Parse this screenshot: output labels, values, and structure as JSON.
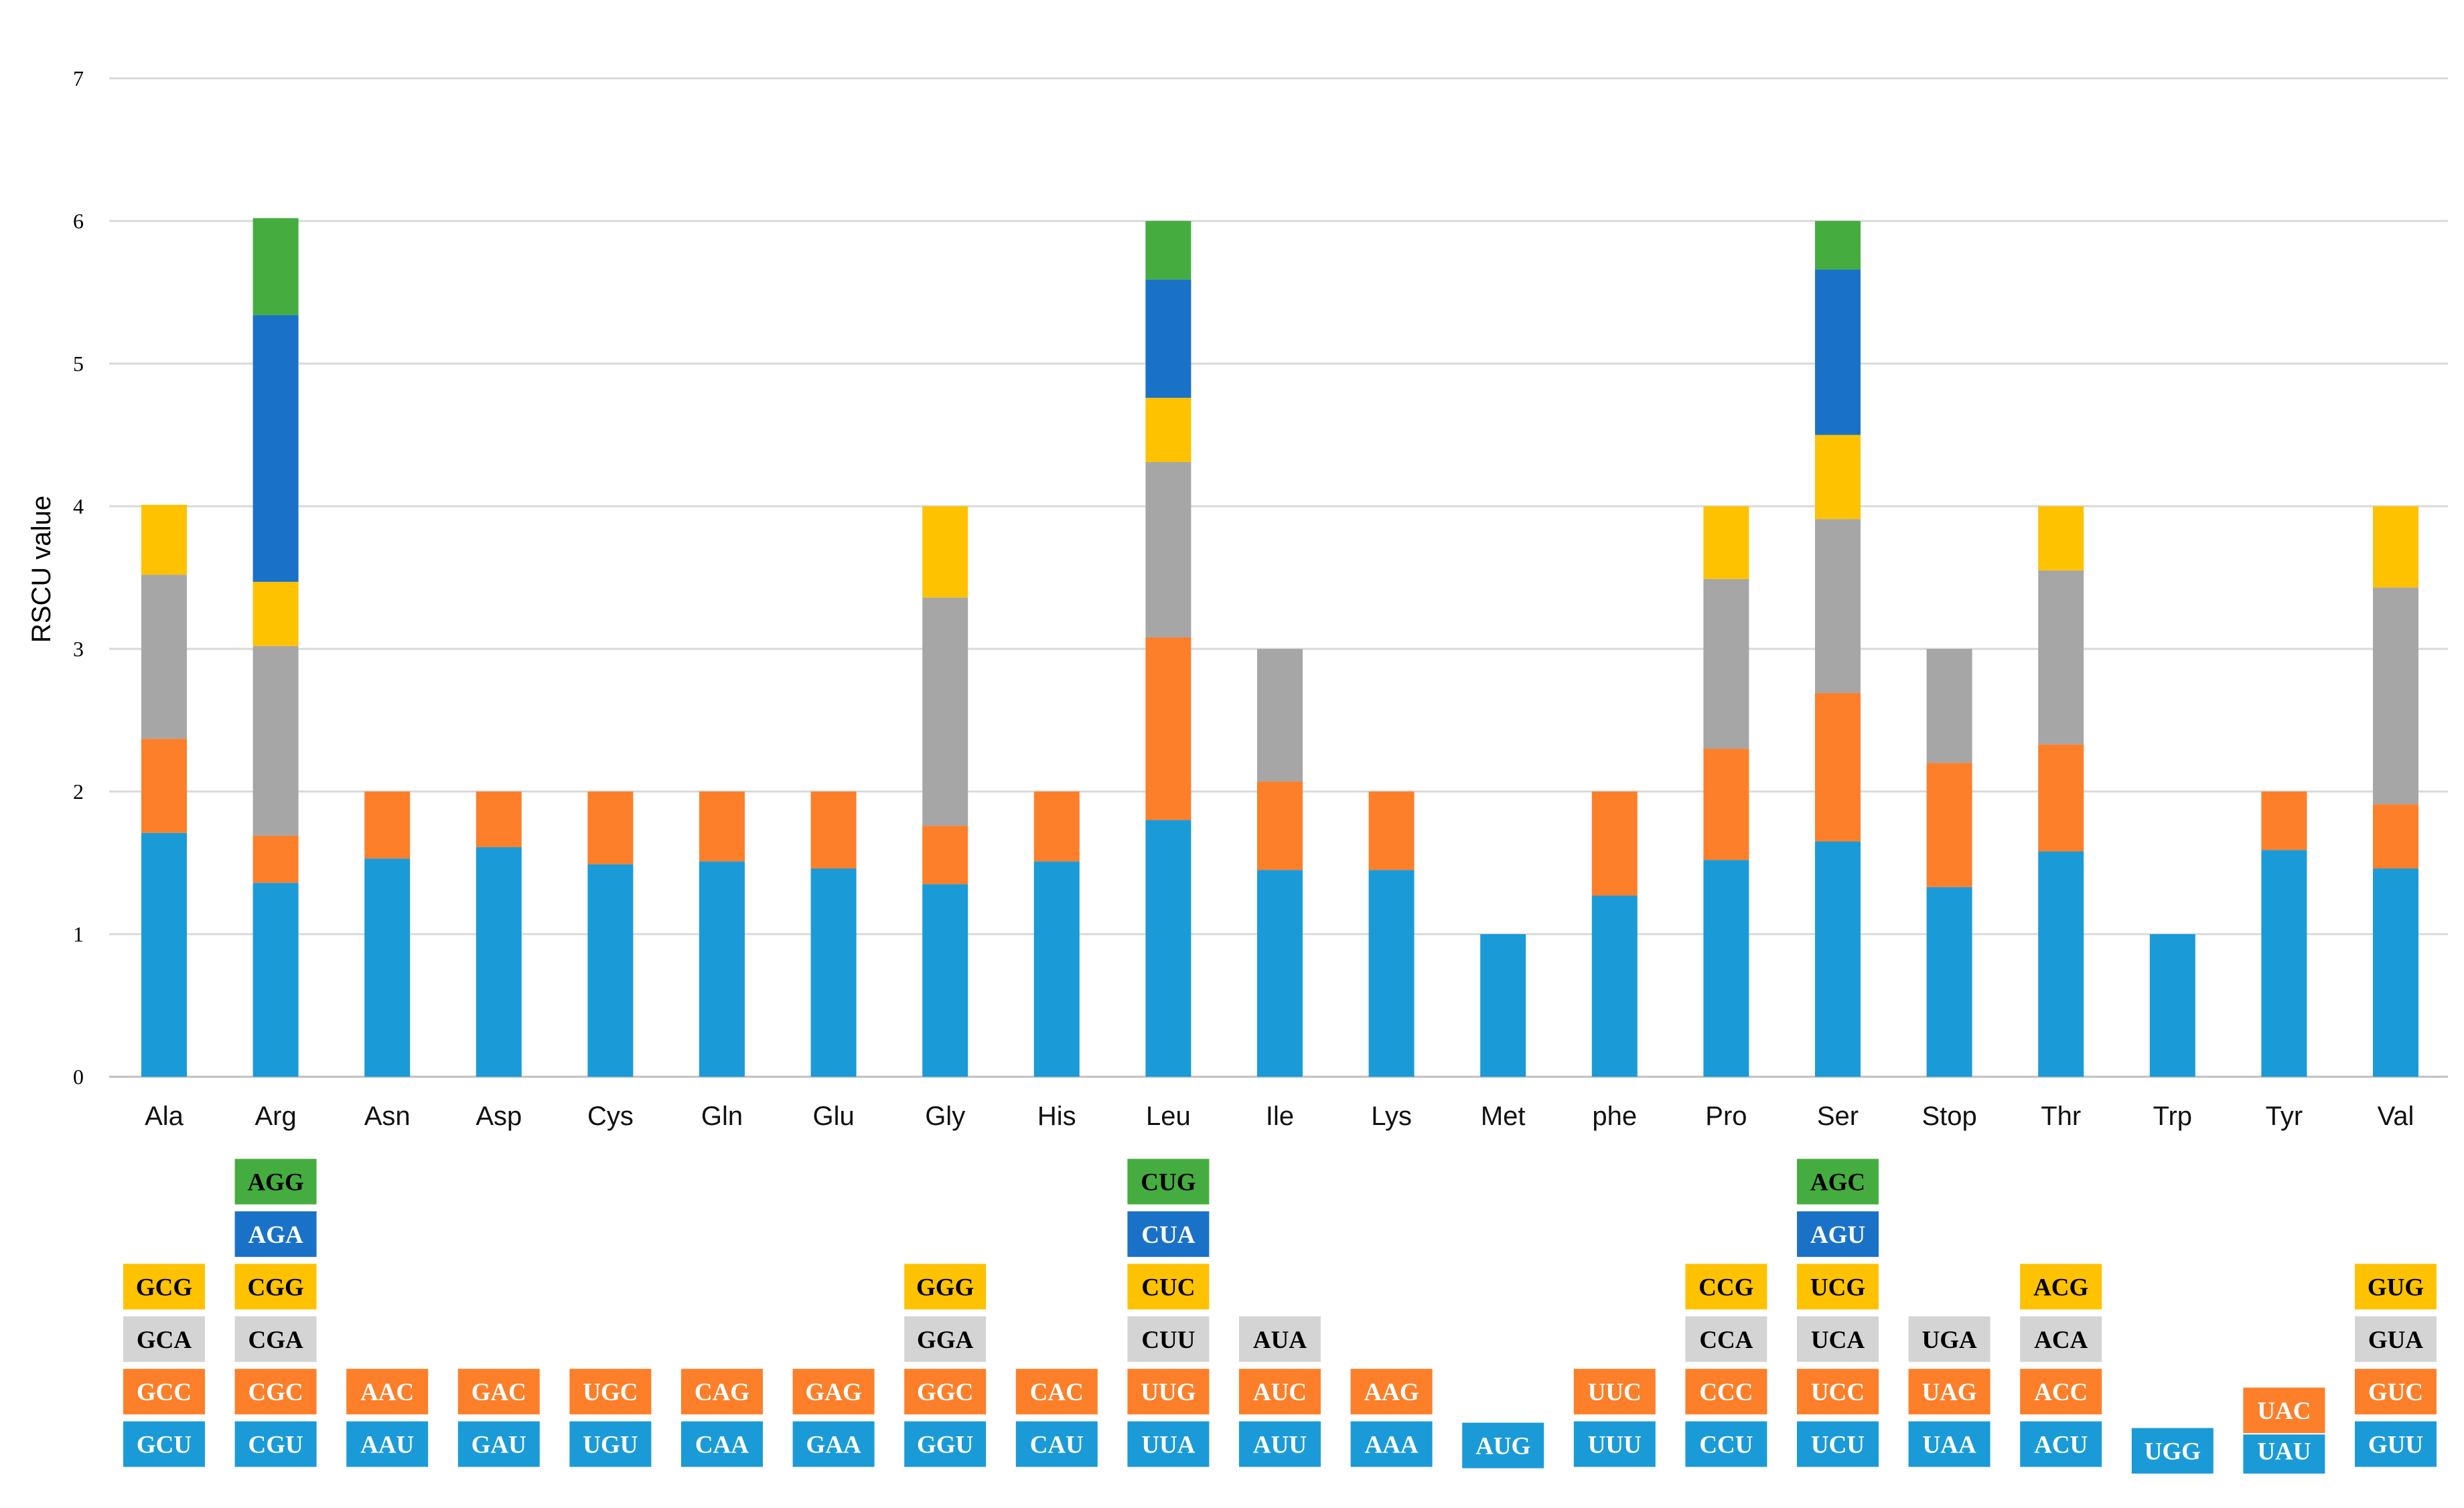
{
  "chart_data": {
    "type": "bar",
    "stacked": true,
    "title": "",
    "xlabel": "",
    "ylabel": "RSCU value",
    "ylim": [
      0,
      7
    ],
    "yticks": [
      0,
      1,
      2,
      3,
      4,
      5,
      6,
      7
    ],
    "grid": true,
    "series_colors": [
      "#1a9bd7",
      "#fd7f2a",
      "#a6a6a6",
      "#fec200",
      "#1a72c8",
      "#45ad3f"
    ],
    "legend_text_colors": [
      "#ffffff",
      "#ffffff",
      "#000000",
      "#000000",
      "#ffffff",
      "#000000"
    ],
    "legend_fill_colors": [
      "#1a9bd7",
      "#fd7f2a",
      "#d4d4d4",
      "#fec200",
      "#1a72c8",
      "#45ad3f"
    ],
    "categories": [
      {
        "name": "Ala",
        "values": [
          1.71,
          0.66,
          1.15,
          0.49
        ],
        "codons": [
          "GCU",
          "GCC",
          "GCA",
          "GCG"
        ]
      },
      {
        "name": "Arg",
        "values": [
          1.36,
          0.33,
          1.33,
          0.45,
          1.87,
          0.68
        ],
        "codons": [
          "CGU",
          "CGC",
          "CGA",
          "CGG",
          "AGA",
          "AGG"
        ]
      },
      {
        "name": "Asn",
        "values": [
          1.53,
          0.47
        ],
        "codons": [
          "AAU",
          "AAC"
        ]
      },
      {
        "name": "Asp",
        "values": [
          1.61,
          0.39
        ],
        "codons": [
          "GAU",
          "GAC"
        ]
      },
      {
        "name": "Cys",
        "values": [
          1.49,
          0.51
        ],
        "codons": [
          "UGU",
          "UGC"
        ]
      },
      {
        "name": "Gln",
        "values": [
          1.51,
          0.49
        ],
        "codons": [
          "CAA",
          "CAG"
        ]
      },
      {
        "name": "Glu",
        "values": [
          1.46,
          0.54
        ],
        "codons": [
          "GAA",
          "GAG"
        ]
      },
      {
        "name": "Gly",
        "values": [
          1.35,
          0.41,
          1.6,
          0.64
        ],
        "codons": [
          "GGU",
          "GGC",
          "GGA",
          "GGG"
        ]
      },
      {
        "name": "His",
        "values": [
          1.51,
          0.49
        ],
        "codons": [
          "CAU",
          "CAC"
        ]
      },
      {
        "name": "Leu",
        "values": [
          1.8,
          1.28,
          1.23,
          0.45,
          0.83,
          0.41
        ],
        "codons": [
          "UUA",
          "UUG",
          "CUU",
          "CUC",
          "CUA",
          "CUG"
        ]
      },
      {
        "name": "Ile",
        "values": [
          1.45,
          0.62,
          0.93
        ],
        "codons": [
          "AUU",
          "AUC",
          "AUA"
        ]
      },
      {
        "name": "Lys",
        "values": [
          1.45,
          0.55
        ],
        "codons": [
          "AAA",
          "AAG"
        ]
      },
      {
        "name": "Met",
        "values": [
          1.0
        ],
        "codons": [
          "AUG"
        ]
      },
      {
        "name": "phe",
        "values": [
          1.27,
          0.73
        ],
        "codons": [
          "UUU",
          "UUC"
        ]
      },
      {
        "name": "Pro",
        "values": [
          1.52,
          0.78,
          1.19,
          0.51
        ],
        "codons": [
          "CCU",
          "CCC",
          "CCA",
          "CCG"
        ]
      },
      {
        "name": "Ser",
        "values": [
          1.65,
          1.04,
          1.22,
          0.59,
          1.16,
          0.34
        ],
        "codons": [
          "UCU",
          "UCC",
          "UCA",
          "UCG",
          "AGU",
          "AGC"
        ]
      },
      {
        "name": "Stop",
        "values": [
          1.33,
          0.87,
          0.8
        ],
        "codons": [
          "UAA",
          "UAG",
          "UGA"
        ]
      },
      {
        "name": "Thr",
        "values": [
          1.58,
          0.75,
          1.22,
          0.45
        ],
        "codons": [
          "ACU",
          "ACC",
          "ACA",
          "ACG"
        ]
      },
      {
        "name": "Trp",
        "values": [
          1.0
        ],
        "codons": [
          "UGG"
        ]
      },
      {
        "name": "Tyr",
        "values": [
          1.59,
          0.41
        ],
        "codons": [
          "UAU",
          "UAC"
        ]
      },
      {
        "name": "Val",
        "values": [
          1.46,
          0.45,
          1.52,
          0.57
        ],
        "codons": [
          "GUU",
          "GUC",
          "GUA",
          "GUG"
        ]
      }
    ]
  }
}
